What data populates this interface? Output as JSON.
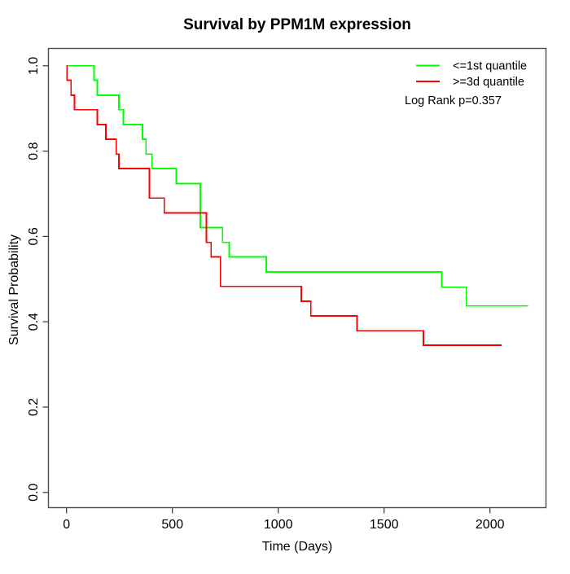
{
  "title": "Survival by PPM1M expression",
  "axes": {
    "x": {
      "label": "Time (Days)"
    },
    "y": {
      "label": "Survival Probability"
    }
  },
  "legend": {
    "items": [
      {
        "label": "<=1st quantile",
        "color": "#00ff00"
      },
      {
        "label": ">=3d quantile",
        "color": "#ff0000"
      }
    ],
    "note": "Log Rank p=0.357"
  },
  "chart_data": {
    "type": "line",
    "subtype": "kaplan-meier-step",
    "title": "Survival by PPM1M expression",
    "xlabel": "Time (Days)",
    "ylabel": "Survival Probability",
    "xlim": [
      0,
      2300
    ],
    "ylim": [
      0,
      1
    ],
    "x_ticks": [
      0,
      500,
      1000,
      1500,
      2000
    ],
    "y_ticks": [
      0,
      0.2,
      0.4,
      0.6,
      0.8,
      1
    ],
    "y_tick_labels": [
      "0.0",
      "0.2",
      "0.4",
      "0.6",
      "0.8",
      "1.0"
    ],
    "grid": false,
    "legend_position": "top-right",
    "annotation": "Log Rank p=0.357",
    "series": [
      {
        "name": "<=1st quantile",
        "color": "#00ff00",
        "steps": [
          [
            0,
            1.0
          ],
          [
            130,
            0.966
          ],
          [
            145,
            0.931
          ],
          [
            247,
            0.897
          ],
          [
            269,
            0.862
          ],
          [
            359,
            0.828
          ],
          [
            375,
            0.793
          ],
          [
            404,
            0.759
          ],
          [
            519,
            0.724
          ],
          [
            632,
            0.621
          ],
          [
            737,
            0.586
          ],
          [
            769,
            0.552
          ],
          [
            944,
            0.517
          ],
          [
            1772,
            0.481
          ],
          [
            1889,
            0.437
          ]
        ],
        "end_time": 2180
      },
      {
        "name": ">=3d quantile",
        "color": "#ff0000",
        "steps": [
          [
            0,
            1.0
          ],
          [
            2,
            0.966
          ],
          [
            21,
            0.931
          ],
          [
            38,
            0.897
          ],
          [
            145,
            0.862
          ],
          [
            186,
            0.828
          ],
          [
            235,
            0.793
          ],
          [
            247,
            0.759
          ],
          [
            391,
            0.69
          ],
          [
            462,
            0.655
          ],
          [
            661,
            0.586
          ],
          [
            683,
            0.552
          ],
          [
            727,
            0.483
          ],
          [
            1109,
            0.448
          ],
          [
            1154,
            0.414
          ],
          [
            1372,
            0.379
          ],
          [
            1686,
            0.345
          ]
        ],
        "end_time": 2055
      }
    ]
  }
}
